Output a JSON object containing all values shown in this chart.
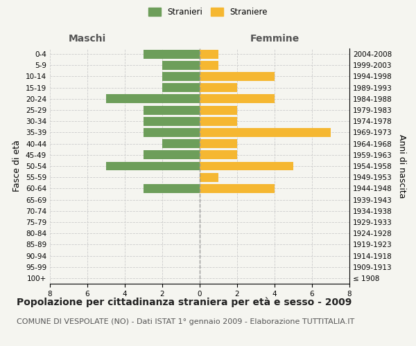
{
  "age_groups": [
    "100+",
    "95-99",
    "90-94",
    "85-89",
    "80-84",
    "75-79",
    "70-74",
    "65-69",
    "60-64",
    "55-59",
    "50-54",
    "45-49",
    "40-44",
    "35-39",
    "30-34",
    "25-29",
    "20-24",
    "15-19",
    "10-14",
    "5-9",
    "0-4"
  ],
  "birth_years": [
    "≤ 1908",
    "1909-1913",
    "1914-1918",
    "1919-1923",
    "1924-1928",
    "1929-1933",
    "1934-1938",
    "1939-1943",
    "1944-1948",
    "1949-1953",
    "1954-1958",
    "1959-1963",
    "1964-1968",
    "1969-1973",
    "1974-1978",
    "1979-1983",
    "1984-1988",
    "1989-1993",
    "1994-1998",
    "1999-2003",
    "2004-2008"
  ],
  "males": [
    0,
    0,
    0,
    0,
    0,
    0,
    0,
    0,
    3,
    0,
    5,
    3,
    2,
    3,
    3,
    3,
    5,
    2,
    2,
    2,
    3
  ],
  "females": [
    0,
    0,
    0,
    0,
    0,
    0,
    0,
    0,
    4,
    1,
    5,
    2,
    2,
    7,
    2,
    2,
    4,
    2,
    4,
    1,
    1
  ],
  "male_color": "#6d9e5a",
  "female_color": "#f5b731",
  "background_color": "#f5f5f0",
  "grid_color": "#cccccc",
  "bar_height": 0.8,
  "xlim": 8,
  "title": "Popolazione per cittadinanza straniera per età e sesso - 2009",
  "subtitle": "COMUNE DI VESPOLATE (NO) - Dati ISTAT 1° gennaio 2009 - Elaborazione TUTTITALIA.IT",
  "ylabel_left": "Fasce di età",
  "ylabel_right": "Anni di nascita",
  "xlabel_left": "Maschi",
  "xlabel_right": "Femmine",
  "legend_male": "Stranieri",
  "legend_female": "Straniere",
  "title_fontsize": 10,
  "subtitle_fontsize": 8,
  "tick_fontsize": 7.5,
  "label_fontsize": 9
}
